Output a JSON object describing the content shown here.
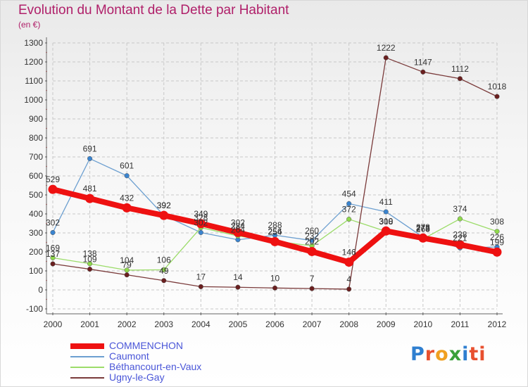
{
  "chart_data": {
    "type": "line",
    "title": "Evolution du Montant de la Dette par Habitant",
    "subtitle": "(en €)",
    "x": [
      "2000",
      "2001",
      "2002",
      "2003",
      "2004",
      "2005",
      "2006",
      "2007",
      "2008",
      "2009",
      "2010",
      "2011",
      "2012"
    ],
    "ylim": [
      -100,
      1300
    ],
    "yticks": [
      -100,
      0,
      100,
      200,
      300,
      400,
      500,
      600,
      700,
      800,
      900,
      1000,
      1100,
      1200,
      1300
    ],
    "grid": true,
    "legend_position": "bottom-left",
    "series": [
      {
        "name": "COMMENCHON",
        "color": "#ee1111",
        "width": 8,
        "marker": "#ee1111",
        "values": [
          529,
          481,
          432,
          392,
          349,
          302,
          254,
          202,
          146,
          310,
          273,
          238,
          199
        ]
      },
      {
        "name": "Caumont",
        "color": "#6c9fd0",
        "width": 1.3,
        "marker": "#3a84cf",
        "values": [
          302,
          691,
          601,
          392,
          302,
          264,
          288,
          260,
          454,
          411,
          278,
          221,
          226
        ]
      },
      {
        "name": "Béthancourt-en-Vaux",
        "color": "#9cdc6a",
        "width": 1.3,
        "marker": "#8fd94c",
        "values": [
          169,
          138,
          104,
          106,
          328,
          284,
          256,
          232,
          372,
          308,
          268,
          374,
          308
        ]
      },
      {
        "name": "Ugny-le-Gay",
        "color": "#7a3a3a",
        "width": 1.3,
        "marker": "#6a1f1f",
        "values": [
          137,
          109,
          79,
          49,
          17,
          14,
          10,
          7,
          4,
          1222,
          1147,
          1112,
          1018
        ]
      }
    ]
  },
  "logo": [
    "P",
    "r",
    "o",
    "x",
    "i",
    "ti"
  ]
}
